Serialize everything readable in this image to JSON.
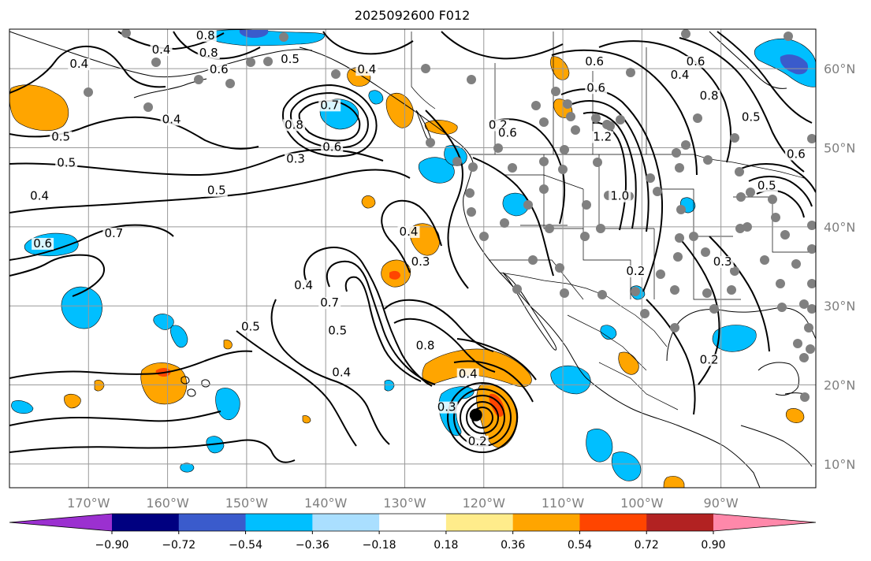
{
  "title": "2025092600 F012",
  "map": {
    "projection": "plate-carree",
    "lon_range": [
      -180,
      -78
    ],
    "lat_range": [
      7,
      65
    ],
    "gridlines": true,
    "lon_ticks": [
      {
        "value": -170,
        "label": "170°W"
      },
      {
        "value": -160,
        "label": "160°W"
      },
      {
        "value": -150,
        "label": "150°W"
      },
      {
        "value": -140,
        "label": "140°W"
      },
      {
        "value": -130,
        "label": "130°W"
      },
      {
        "value": -120,
        "label": "120°W"
      },
      {
        "value": -110,
        "label": "110°W"
      },
      {
        "value": -100,
        "label": "100°W"
      },
      {
        "value": -90,
        "label": "90°W"
      }
    ],
    "lat_ticks": [
      {
        "value": 10,
        "label": "10°N"
      },
      {
        "value": 20,
        "label": "20°N"
      },
      {
        "value": 30,
        "label": "30°N"
      },
      {
        "value": 40,
        "label": "40°N"
      },
      {
        "value": 50,
        "label": "50°N"
      },
      {
        "value": 60,
        "label": "60°N"
      }
    ],
    "lat_tick_side": "right",
    "storm_center": {
      "lon": -121.0,
      "lat": 16.2
    }
  },
  "colorbar": {
    "orientation": "horizontal",
    "extend": "both",
    "bounds": [
      -0.9,
      -0.72,
      -0.54,
      -0.36,
      -0.18,
      0.18,
      0.36,
      0.54,
      0.72,
      0.9
    ],
    "labels": [
      "−0.90",
      "−0.72",
      "−0.54",
      "−0.36",
      "−0.18",
      "0.18",
      "0.36",
      "0.54",
      "0.72",
      "0.90"
    ],
    "colors": [
      "#9b30d0",
      "#000080",
      "#3a5bcc",
      "#00bfff",
      "#aadfff",
      "#ffffff",
      "#ffec8b",
      "#ffa500",
      "#ff4500",
      "#b22222",
      "#ff88aa"
    ]
  },
  "contour_labels": [
    {
      "text": "0.4",
      "lon": -171.2,
      "lat": 60.2
    },
    {
      "text": "0.4",
      "lon": -160.8,
      "lat": 62.0
    },
    {
      "text": "0.8",
      "lon": -155.2,
      "lat": 63.8
    },
    {
      "text": "0.8",
      "lon": -154.8,
      "lat": 61.6
    },
    {
      "text": "0.6",
      "lon": -153.5,
      "lat": 59.5
    },
    {
      "text": "0.5",
      "lon": -144.5,
      "lat": 60.8
    },
    {
      "text": "0.4",
      "lon": -134.8,
      "lat": 59.5
    },
    {
      "text": "0.7",
      "lon": -139.5,
      "lat": 55.0
    },
    {
      "text": "0.8",
      "lon": -144.0,
      "lat": 52.5
    },
    {
      "text": "0.6",
      "lon": -139.2,
      "lat": 49.7
    },
    {
      "text": "0.3",
      "lon": -143.8,
      "lat": 48.2
    },
    {
      "text": "0.4",
      "lon": -159.5,
      "lat": 53.2
    },
    {
      "text": "0.5",
      "lon": -173.5,
      "lat": 51.0
    },
    {
      "text": "0.5",
      "lon": -172.8,
      "lat": 47.7
    },
    {
      "text": "0.4",
      "lon": -176.2,
      "lat": 43.5
    },
    {
      "text": "0.5",
      "lon": -153.8,
      "lat": 44.2
    },
    {
      "text": "0.7",
      "lon": -166.8,
      "lat": 38.8
    },
    {
      "text": "0.6",
      "lon": -175.8,
      "lat": 37.5
    },
    {
      "text": "0.4",
      "lon": -129.5,
      "lat": 39.0
    },
    {
      "text": "0.3",
      "lon": -128.0,
      "lat": 35.2
    },
    {
      "text": "0.4",
      "lon": -142.8,
      "lat": 32.2
    },
    {
      "text": "0.7",
      "lon": -139.5,
      "lat": 30.0
    },
    {
      "text": "0.5",
      "lon": -138.5,
      "lat": 26.5
    },
    {
      "text": "0.8",
      "lon": -127.4,
      "lat": 24.6
    },
    {
      "text": "0.4",
      "lon": -138.0,
      "lat": 21.2
    },
    {
      "text": "0.5",
      "lon": -149.5,
      "lat": 27.0
    },
    {
      "text": "0.4",
      "lon": -122.0,
      "lat": 21.0
    },
    {
      "text": "0.3",
      "lon": -124.7,
      "lat": 16.8
    },
    {
      "text": "0.2",
      "lon": -120.8,
      "lat": 12.5
    },
    {
      "text": "0.2",
      "lon": -118.2,
      "lat": 52.5
    },
    {
      "text": "0.6",
      "lon": -117.0,
      "lat": 51.5
    },
    {
      "text": "0.6",
      "lon": -105.8,
      "lat": 57.2
    },
    {
      "text": "1.2",
      "lon": -105.0,
      "lat": 51.0
    },
    {
      "text": "1.0",
      "lon": -102.8,
      "lat": 43.5
    },
    {
      "text": "0.6",
      "lon": -106.0,
      "lat": 60.5
    },
    {
      "text": "0.6",
      "lon": -93.2,
      "lat": 60.5
    },
    {
      "text": "0.4",
      "lon": -95.2,
      "lat": 58.8
    },
    {
      "text": "0.8",
      "lon": -91.5,
      "lat": 56.2
    },
    {
      "text": "0.5",
      "lon": -86.2,
      "lat": 53.5
    },
    {
      "text": "0.6",
      "lon": -80.5,
      "lat": 48.8
    },
    {
      "text": "0.5",
      "lon": -84.2,
      "lat": 44.8
    },
    {
      "text": "0.3",
      "lon": -89.8,
      "lat": 35.2
    },
    {
      "text": "0.2",
      "lon": -100.8,
      "lat": 34.0
    },
    {
      "text": "0.2",
      "lon": -91.5,
      "lat": 22.8
    }
  ],
  "stations_label": "station-dot"
}
